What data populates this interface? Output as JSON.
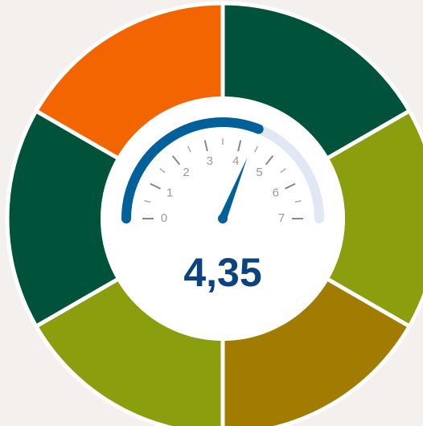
{
  "chart_data": {
    "type": "gauge",
    "value": 4.35,
    "value_label": "4,35",
    "ylim": [
      0,
      7
    ],
    "yticks": [
      0,
      1,
      2,
      3,
      4,
      5,
      6,
      7
    ],
    "color": "#00609a",
    "track_color": "#e2e7f4"
  }
}
